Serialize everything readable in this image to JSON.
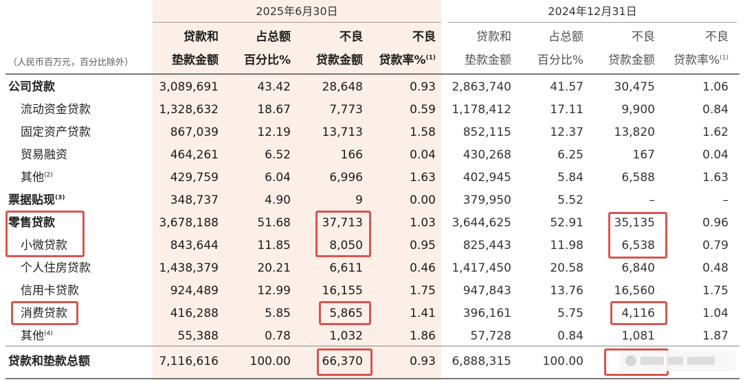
{
  "periods": {
    "current": "2025年6月30日",
    "previous": "2024年12月31日"
  },
  "unit_note": "（人民币百万元，百分比除外）",
  "columns": {
    "current": [
      {
        "line1": "贷款和",
        "line2": "垫款金额",
        "note": ""
      },
      {
        "line1": "占总额",
        "line2": "百分比%",
        "note": ""
      },
      {
        "line1": "不良",
        "line2": "贷款金额",
        "note": ""
      },
      {
        "line1": "不良",
        "line2": "贷款率%",
        "note": "(1)"
      }
    ],
    "previous": [
      {
        "line1": "贷款和",
        "line2": "垫款金额",
        "note": ""
      },
      {
        "line1": "占总额",
        "line2": "百分比%",
        "note": ""
      },
      {
        "line1": "不良",
        "line2": "贷款金额",
        "note": ""
      },
      {
        "line1": "不良",
        "line2": "贷款率%",
        "note": "(1)"
      }
    ]
  },
  "rows": [
    {
      "label": "公司贷款",
      "note": "",
      "level": "top",
      "current": [
        "3,089,691",
        "43.42",
        "28,648",
        "0.93"
      ],
      "previous": [
        "2,863,740",
        "41.57",
        "30,475",
        "1.06"
      ]
    },
    {
      "label": "流动资金贷款",
      "note": "",
      "level": "sub",
      "current": [
        "1,328,632",
        "18.67",
        "7,773",
        "0.59"
      ],
      "previous": [
        "1,178,412",
        "17.11",
        "9,900",
        "0.84"
      ]
    },
    {
      "label": "固定资产贷款",
      "note": "",
      "level": "sub",
      "current": [
        "867,039",
        "12.19",
        "13,713",
        "1.58"
      ],
      "previous": [
        "852,115",
        "12.37",
        "13,820",
        "1.62"
      ]
    },
    {
      "label": "贸易融资",
      "note": "",
      "level": "sub",
      "current": [
        "464,261",
        "6.52",
        "166",
        "0.04"
      ],
      "previous": [
        "430,268",
        "6.25",
        "167",
        "0.04"
      ]
    },
    {
      "label": "其他",
      "note": "(2)",
      "level": "sub",
      "current": [
        "429,759",
        "6.04",
        "6,996",
        "1.63"
      ],
      "previous": [
        "402,945",
        "5.84",
        "6,588",
        "1.63"
      ]
    },
    {
      "label": "票据贴现",
      "note": "(3)",
      "level": "top",
      "current": [
        "348,737",
        "4.90",
        "9",
        "0.00"
      ],
      "previous": [
        "379,950",
        "5.52",
        "–",
        "–"
      ]
    },
    {
      "label": "零售贷款",
      "note": "",
      "level": "top",
      "current": [
        "3,678,188",
        "51.68",
        "37,713",
        "1.03"
      ],
      "previous": [
        "3,644,625",
        "52.91",
        "35,135",
        "0.96"
      ]
    },
    {
      "label": "小微贷款",
      "note": "",
      "level": "sub",
      "current": [
        "843,644",
        "11.85",
        "8,050",
        "0.95"
      ],
      "previous": [
        "825,443",
        "11.98",
        "6,538",
        "0.79"
      ]
    },
    {
      "label": "个人住房贷款",
      "note": "",
      "level": "sub",
      "current": [
        "1,438,379",
        "20.21",
        "6,611",
        "0.46"
      ],
      "previous": [
        "1,417,450",
        "20.58",
        "6,840",
        "0.48"
      ]
    },
    {
      "label": "信用卡贷款",
      "note": "",
      "level": "sub",
      "current": [
        "924,489",
        "12.99",
        "16,155",
        "1.75"
      ],
      "previous": [
        "947,843",
        "13.76",
        "16,560",
        "1.75"
      ]
    },
    {
      "label": "消费贷款",
      "note": "",
      "level": "sub",
      "current": [
        "416,288",
        "5.85",
        "5,865",
        "1.41"
      ],
      "previous": [
        "396,161",
        "5.75",
        "4,116",
        "1.04"
      ]
    },
    {
      "label": "其他",
      "note": "(4)",
      "level": "sub",
      "current": [
        "55,388",
        "0.78",
        "1,032",
        "1.86"
      ],
      "previous": [
        "57,728",
        "0.84",
        "1,081",
        "1.87"
      ]
    },
    {
      "label": "贷款和垫款总额",
      "note": "",
      "level": "top",
      "current": [
        "7,116,616",
        "100.00",
        "66,370",
        "0.93"
      ],
      "previous": [
        "6,888,315",
        "100.00",
        "",
        ""
      ]
    }
  ],
  "colors": {
    "highlight": "#d9534f",
    "shading": "#fcefe8"
  }
}
